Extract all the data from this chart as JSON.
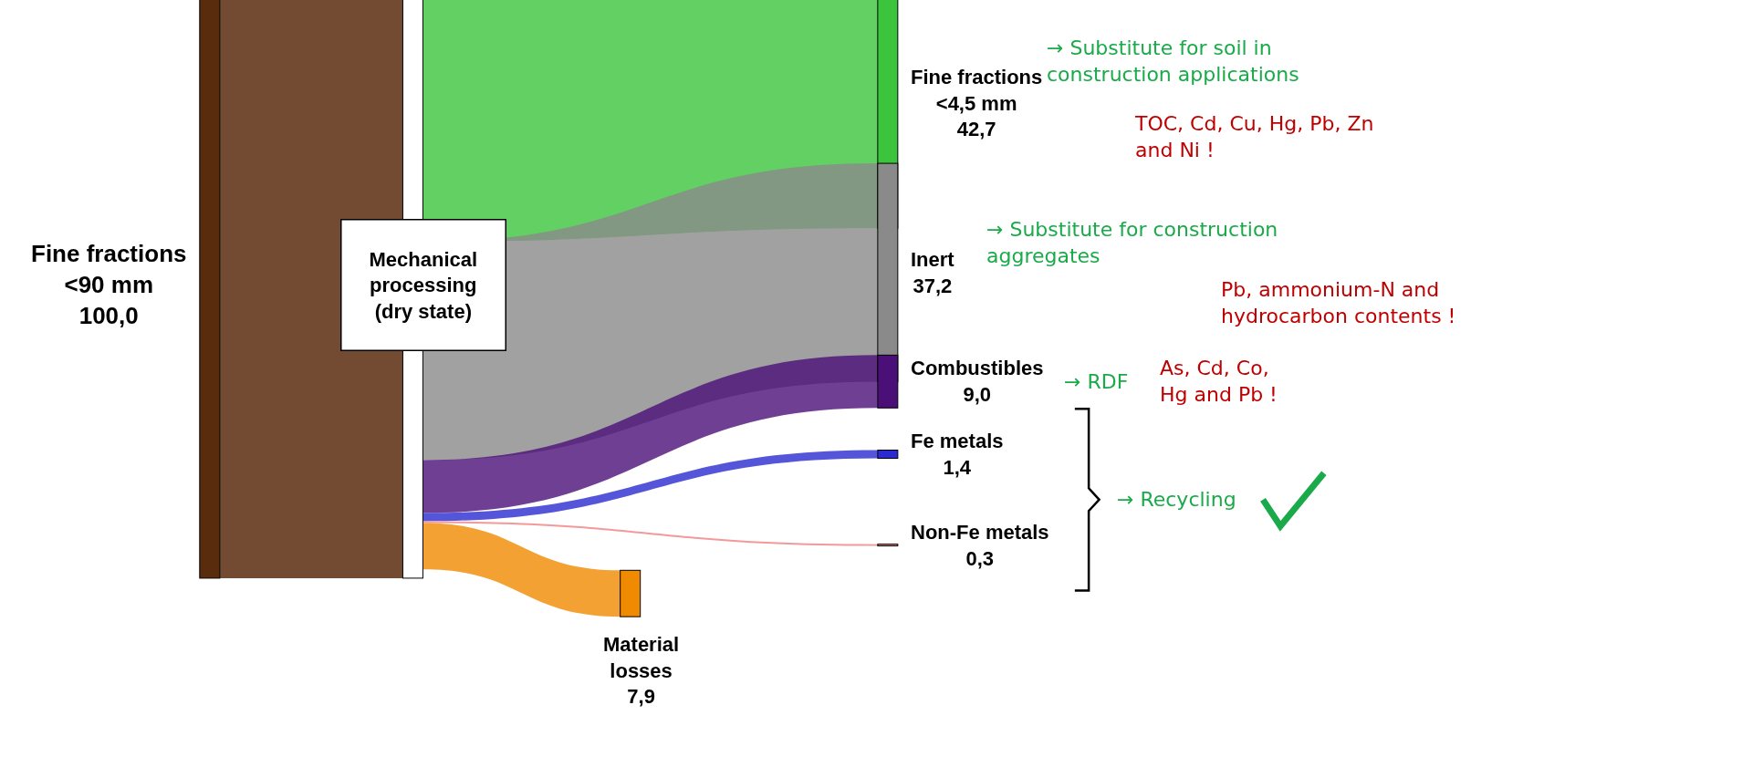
{
  "chart_data": {
    "type": "other",
    "categories": [
      "Fine fractions\n<90 mm",
      "Mechanical\nprocessing\n(dry state)",
      "Fine fractions\n<4,5 mm",
      "Inert",
      "Combustibles",
      "Fe metals",
      "Non-Fe metals",
      "Material\nlosses"
    ],
    "values": [
      100.0,
      null,
      42.7,
      37.2,
      9.0,
      1.4,
      0.3,
      7.9
    ],
    "value_labels": [
      "100,0",
      null,
      "42,7",
      "37,2",
      "9,0",
      "1,4",
      "0,3",
      "7,9"
    ],
    "colors": [
      "#5a2c0e",
      "#ffffff",
      "#3cc43c",
      "#8a8a8a",
      "#4b0f78",
      "#2a2ad0",
      "#f08080",
      "#f08a00"
    ],
    "annotations": [
      "→ Substitute for soil in\nconstruction applications",
      "TOC, Cd, Cu, Hg, Pb, Zn\nand Ni !",
      "→ Substitute for construction\naggregates",
      "Pb, ammonium-N and\nhydrocarbon contents !",
      "→ RDF",
      "As, Cd, Co,\nHg and Pb !",
      "→ Recycling"
    ]
  }
}
